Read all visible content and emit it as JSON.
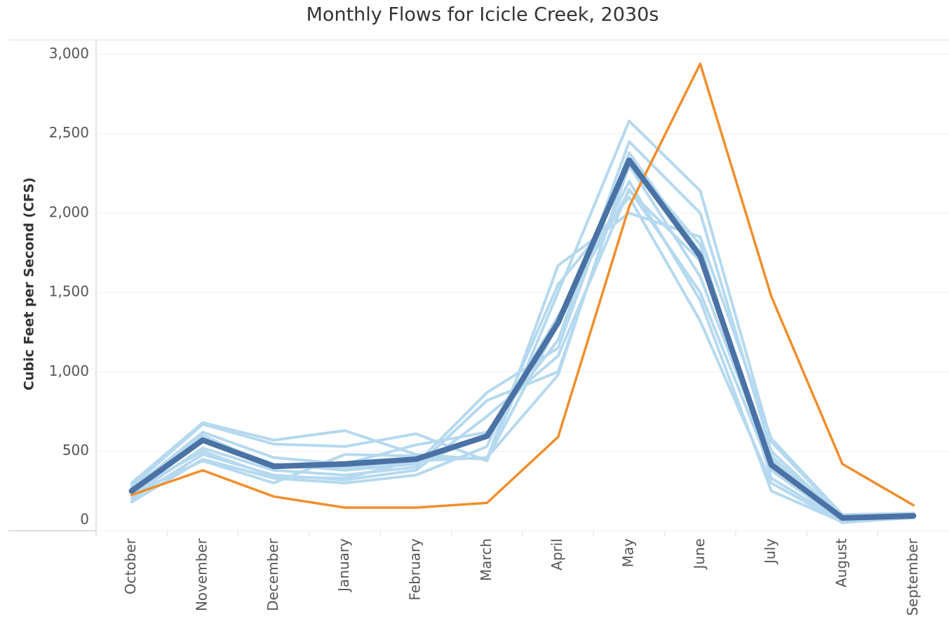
{
  "chart_data": {
    "type": "line",
    "title": "Monthly Flows for Icicle Creek, 2030s",
    "y_label": "Cubic Feet per Second (CFS)",
    "categories": [
      "October",
      "November",
      "December",
      "January",
      "February",
      "March",
      "April",
      "May",
      "June",
      "July",
      "August",
      "September"
    ],
    "ylim": [
      0,
      3090
    ],
    "yticks": [
      0,
      500,
      {
        "value": 1000,
        "label": "1,000"
      },
      {
        "value": 1500,
        "label": "1,500"
      },
      {
        "value": 2000,
        "label": "2,000"
      },
      {
        "value": 2500,
        "label": "2,500"
      },
      {
        "value": 3000,
        "label": "3,000"
      }
    ],
    "grid": true,
    "series": [
      {
        "color": "#b5d9ef",
        "width": 4,
        "values": [
          300,
          680,
          570,
          630,
          480,
          450,
          1670,
          2000,
          1850,
          580,
          100,
          110
        ]
      },
      {
        "color": "#b5d9ef",
        "width": 4,
        "values": [
          280,
          670,
          545,
          530,
          610,
          440,
          1500,
          2580,
          2140,
          560,
          90,
          100
        ]
      },
      {
        "color": "#b5d9ef",
        "width": 4,
        "values": [
          260,
          620,
          460,
          420,
          540,
          620,
          1200,
          2450,
          2000,
          500,
          80,
          90
        ]
      },
      {
        "color": "#b5d9ef",
        "width": 4,
        "values": [
          240,
          580,
          420,
          380,
          420,
          870,
          1150,
          2380,
          1750,
          450,
          70,
          95
        ]
      },
      {
        "color": "#b5d9ef",
        "width": 4,
        "values": [
          220,
          520,
          380,
          350,
          400,
          820,
          1000,
          2300,
          1600,
          420,
          60,
          85
        ]
      },
      {
        "color": "#b5d9ef",
        "width": 4,
        "values": [
          200,
          480,
          350,
          320,
          380,
          720,
          1100,
          2150,
          1500,
          380,
          60,
          90
        ]
      },
      {
        "color": "#b5d9ef",
        "width": 4,
        "values": [
          180,
          450,
          330,
          300,
          350,
          530,
          1550,
          2100,
          1320,
          300,
          50,
          85
        ]
      },
      {
        "color": "#b5d9ef",
        "width": 4,
        "values": [
          230,
          440,
          300,
          480,
          470,
          450,
          1300,
          2200,
          1450,
          250,
          55,
          80
        ]
      },
      {
        "color": "#b5d9ef",
        "width": 4,
        "values": [
          250,
          500,
          340,
          330,
          440,
          460,
          980,
          2330,
          1800,
          330,
          60,
          90
        ]
      },
      {
        "color": "#b5d9ef",
        "width": 4,
        "values": [
          270,
          600,
          400,
          400,
          420,
          600,
          1350,
          2140,
          1700,
          470,
          70,
          100
        ]
      },
      {
        "color": "#f28e2b",
        "width": 3.5,
        "values": [
          225,
          380,
          215,
          145,
          145,
          175,
          590,
          2040,
          2940,
          1475,
          420,
          160
        ]
      },
      {
        "color": "#4a72a5",
        "width": 8,
        "values": [
          250,
          570,
          405,
          420,
          450,
          595,
          1310,
          2333,
          1728,
          415,
          80,
          93
        ]
      }
    ]
  }
}
